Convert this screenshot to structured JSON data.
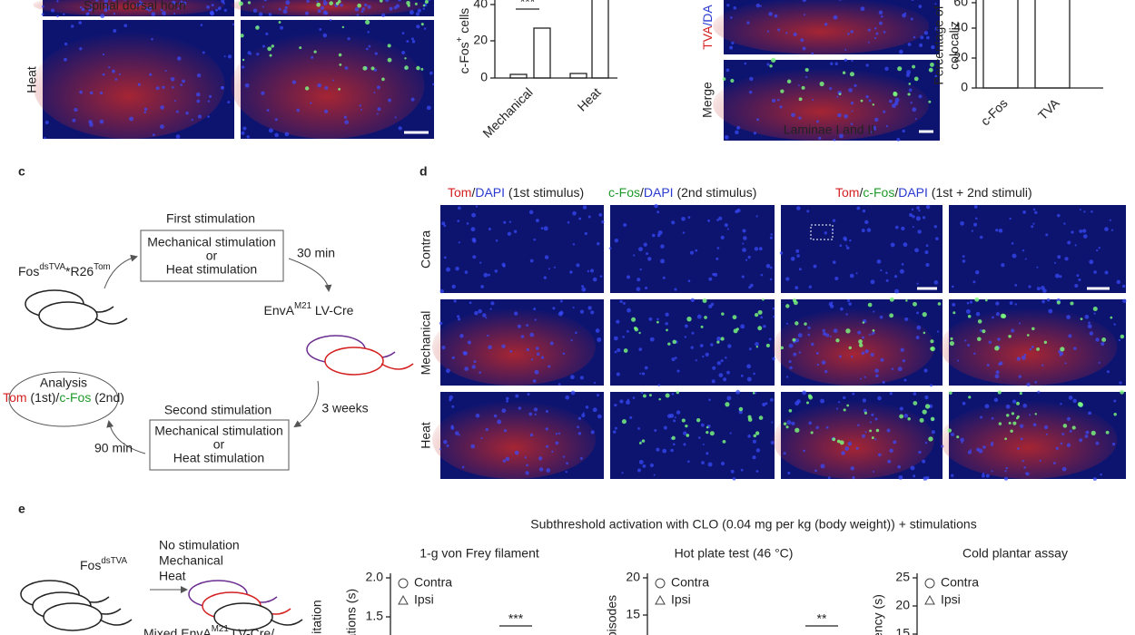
{
  "panel_a": {
    "image_label": "Spinal dorsal horn",
    "row_label": "Heat"
  },
  "panel_a_chart": {
    "y_label": [
      "c-Fos",
      "+",
      " cells"
    ],
    "yticks": [
      "0",
      "20",
      "40"
    ],
    "significance": "***",
    "categories": [
      "Mechanical",
      "Heat"
    ]
  },
  "panel_b": {
    "channel_label": [
      "TVA",
      "/DA"
    ],
    "row_label": "Merge",
    "image_label": "Laminae I and II"
  },
  "panel_b_chart": {
    "y_label": [
      "Percentage of",
      "colocaliz"
    ],
    "yticks": [
      "0",
      "20",
      "40",
      "60"
    ],
    "categories": [
      "c-Fos",
      "TVA"
    ]
  },
  "panel_c": {
    "letter": "c",
    "first_stimulation": {
      "title": "First stimulation",
      "lines": [
        "Mechanical stimulation",
        "or",
        "Heat stimulation"
      ]
    },
    "mouse_label": [
      "Fos",
      "dsTVA",
      "*R26",
      "Tom"
    ],
    "interval_1": "30 min",
    "virus": [
      "EnvA",
      "M21",
      " LV-Cre"
    ],
    "interval_2": "3 weeks",
    "second_stimulation": {
      "title": "Second stimulation",
      "lines": [
        "Mechanical stimulation",
        "or",
        "Heat stimulation"
      ]
    },
    "interval_3": "90 min",
    "analysis": {
      "title": "Analysis",
      "line": [
        "Tom",
        " (1st)/",
        "c-Fos",
        " (2nd)"
      ]
    }
  },
  "panel_d": {
    "letter": "d",
    "headers": [
      [
        "Tom",
        "/",
        "DAPI",
        " (1st stimulus)"
      ],
      [
        "c-Fos",
        "/",
        "DAPI",
        " (2nd stimulus)"
      ],
      [
        "Tom",
        "/",
        "c-Fos",
        "/",
        "DAPI",
        " (1st + 2nd stimuli)"
      ]
    ],
    "rows": [
      "Contra",
      "Mechanical",
      "Heat"
    ]
  },
  "panel_e": {
    "letter": "e",
    "conditions": [
      "No stimulation",
      "Mechanical",
      "Heat"
    ],
    "mouse_label": [
      "Fos",
      "dsTVA"
    ],
    "virus": [
      "Mixed EnvA",
      "M21",
      " LV-Cre/"
    ],
    "title": "Subthreshold activation with CLO (0.04 mg per kg (body weight)) + stimulations",
    "charts": [
      {
        "title": "1-g von Frey filament",
        "y_label": [
          "itation",
          "rations (s)"
        ],
        "yticks": [
          "2.0",
          "1.5"
        ],
        "legend": [
          "Contra",
          "Ipsi"
        ],
        "significance": "***"
      },
      {
        "title": "Hot plate test (46 °C)",
        "y_label": [
          "pisodes"
        ],
        "yticks": [
          "20",
          "15"
        ],
        "legend": [
          "Contra",
          "Ipsi"
        ],
        "significance": "**"
      },
      {
        "title": "Cold plantar assay",
        "y_label": [
          "ency (s)"
        ],
        "yticks": [
          "25",
          "20",
          "15"
        ],
        "legend": [
          "Contra",
          "Ipsi"
        ]
      }
    ]
  }
}
